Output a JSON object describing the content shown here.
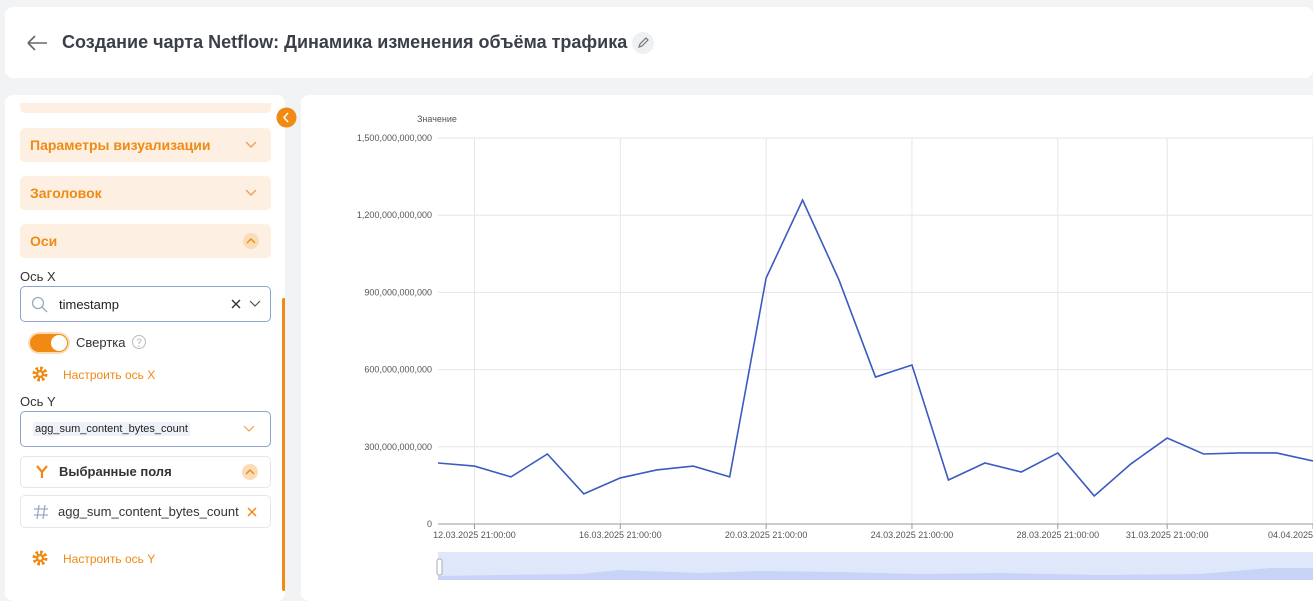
{
  "header": {
    "title": "Создание чарта Netflow: Динамика изменения объёма трафика"
  },
  "sidebar": {
    "sections": [
      "Параметры визуализации",
      "Заголовок",
      "Оси"
    ],
    "x_axis": {
      "label": "Ось X",
      "field": "timestamp",
      "toggle_label": "Свертка",
      "configure": "Настроить ось X"
    },
    "y_axis": {
      "label": "Ось Y",
      "field": "agg_sum_content_bytes_count",
      "selected_title": "Выбранные поля",
      "selected_field": "agg_sum_content_bytes_count",
      "configure": "Настроить ось Y"
    }
  },
  "chart_data": {
    "type": "line",
    "y_label": "Значение",
    "categories": [
      null,
      "12.03.2025 21:00:00",
      null,
      null,
      null,
      "16.03.2025 21:00:00",
      null,
      null,
      null,
      "20.03.2025 21:00:00",
      null,
      null,
      null,
      "24.03.2025 21:00:00",
      null,
      null,
      null,
      "28.03.2025 21:00:00",
      null,
      null,
      "31.03.2025 21:00:00",
      null,
      null,
      null,
      "04.04.2025"
    ],
    "values": [
      237000000000,
      225000000000,
      183000000000,
      272000000000,
      117000000000,
      179000000000,
      210000000000,
      225000000000,
      183000000000,
      956000000000,
      1259000000000,
      948000000000,
      571000000000,
      618000000000,
      171000000000,
      237000000000,
      202000000000,
      276000000000,
      109000000000,
      233000000000,
      334000000000,
      272000000000,
      276000000000,
      276000000000,
      245000000000
    ],
    "color": "#3a5bc0",
    "ylim": [
      0,
      1500000000000
    ],
    "yticks": [
      0,
      {
        "value": 300000000000,
        "label": "300,000,000,000"
      },
      {
        "value": 600000000000,
        "label": "600,000,000,000"
      },
      {
        "value": 900000000000,
        "label": "900,000,000,000"
      },
      {
        "value": 1200000000000,
        "label": "1,200,000,000,000"
      },
      {
        "value": 1500000000000,
        "label": "1,500,000,000,000"
      }
    ],
    "grid": true
  }
}
